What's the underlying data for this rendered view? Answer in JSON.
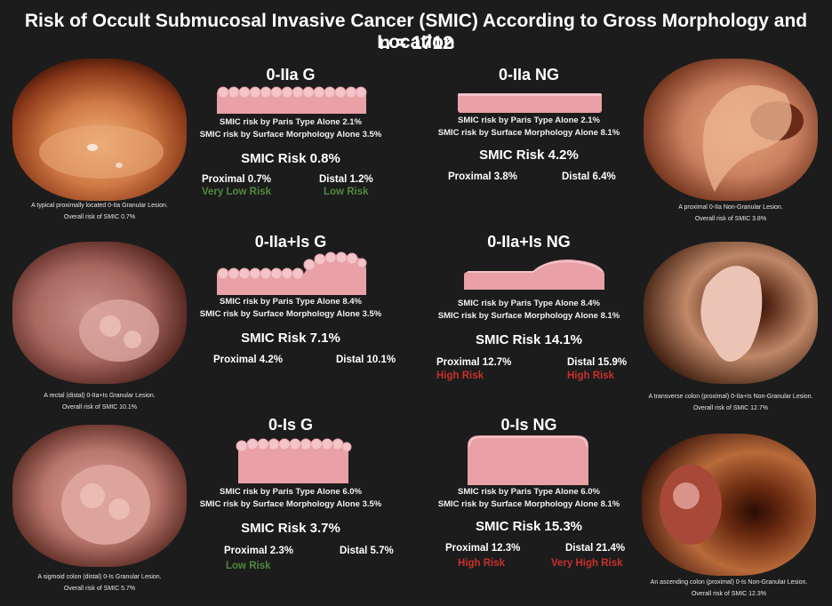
{
  "title": "Risk of Occult Submucosal Invasive Cancer (SMIC) According to Gross Morphology and Location",
  "subtitle": "n = 1712",
  "colors": {
    "background": "#1c1c1c",
    "lesion": "#e9a0a6",
    "lesion_light": "#f3c4c8",
    "low_risk": "#4f8a3c",
    "high_risk": "#c8302c"
  },
  "panels": [
    {
      "title": "0-IIa G",
      "paris": "SMIC risk by Paris Type Alone  2.1%",
      "surface": "SMIC risk by Surface Morphology Alone 3.5%",
      "smic": "SMIC Risk  0.8%",
      "proximal": "Proximal 0.7%",
      "distal": "Distal 1.2%",
      "proximal_tag": "Very Low Risk",
      "distal_tag": "Low Risk"
    },
    {
      "title": "0-IIa NG",
      "paris": "SMIC risk by Paris Type Alone  2.1%",
      "surface": "SMIC risk by Surface Morphology Alone 8.1%",
      "smic": "SMIC Risk  4.2%",
      "proximal": "Proximal 3.8%",
      "distal": "Distal 6.4%",
      "proximal_tag": "",
      "distal_tag": ""
    },
    {
      "title": "0-IIa+Is G",
      "paris": "SMIC risk by Paris Type Alone  8.4%",
      "surface": "SMIC risk by Surface Morphology Alone 3.5%",
      "smic": "SMIC Risk  7.1%",
      "proximal": "Proximal 4.2%",
      "distal": "Distal 10.1%",
      "proximal_tag": "",
      "distal_tag": ""
    },
    {
      "title": "0-IIa+Is NG",
      "paris": "SMIC risk by Paris Type Alone  8.4%",
      "surface": "SMIC risk by Surface Morphology Alone 8.1%",
      "smic": "SMIC Risk  14.1%",
      "proximal": "Proximal 12.7%",
      "distal": "Distal 15.9%",
      "proximal_tag": "High Risk",
      "distal_tag": "High Risk"
    },
    {
      "title": "0-Is G",
      "paris": "SMIC risk by Paris Type Alone  6.0%",
      "surface": "SMIC risk by Surface Morphology Alone 3.5%",
      "smic": "SMIC Risk  3.7%",
      "proximal": "Proximal 2.3%",
      "distal": "Distal 5.7%",
      "proximal_tag": "Low Risk",
      "distal_tag": ""
    },
    {
      "title": "0-Is NG",
      "paris": "SMIC risk by Paris Type Alone  6.0%",
      "surface": "SMIC risk by Surface Morphology Alone 8.1%",
      "smic": "SMIC Risk  15.3%",
      "proximal": "Proximal 12.3%",
      "distal": "Distal 21.4%",
      "proximal_tag": "High Risk",
      "distal_tag": "Very High Risk"
    }
  ],
  "photos": [
    {
      "caption1": "A typical proximally located 0-IIa Granular Lesion.",
      "caption2": "Overall risk of SMIC 0.7%"
    },
    {
      "caption1": "A proximal 0-IIa Non-Granular Lesion.",
      "caption2": "Overall risk of SMIC 3.8%"
    },
    {
      "caption1": "A rectal (distal) 0-IIa+Is Granular Lesion.",
      "caption2": "Overall risk of SMIC 10.1%"
    },
    {
      "caption1": "A transverse colon (proximal) 0-IIa+Is Non-Granular Lesion.",
      "caption2": "Overall risk of SMIC 12.7%"
    },
    {
      "caption1": "A sigmoid colon (distal) 0-Is Granular Lesion.",
      "caption2": "Overall risk of SMIC 5.7%"
    },
    {
      "caption1": "An ascending colon (proximal) 0-Is Non-Granular Lesion.",
      "caption2": "Overall risk of SMIC 12.3%"
    }
  ]
}
